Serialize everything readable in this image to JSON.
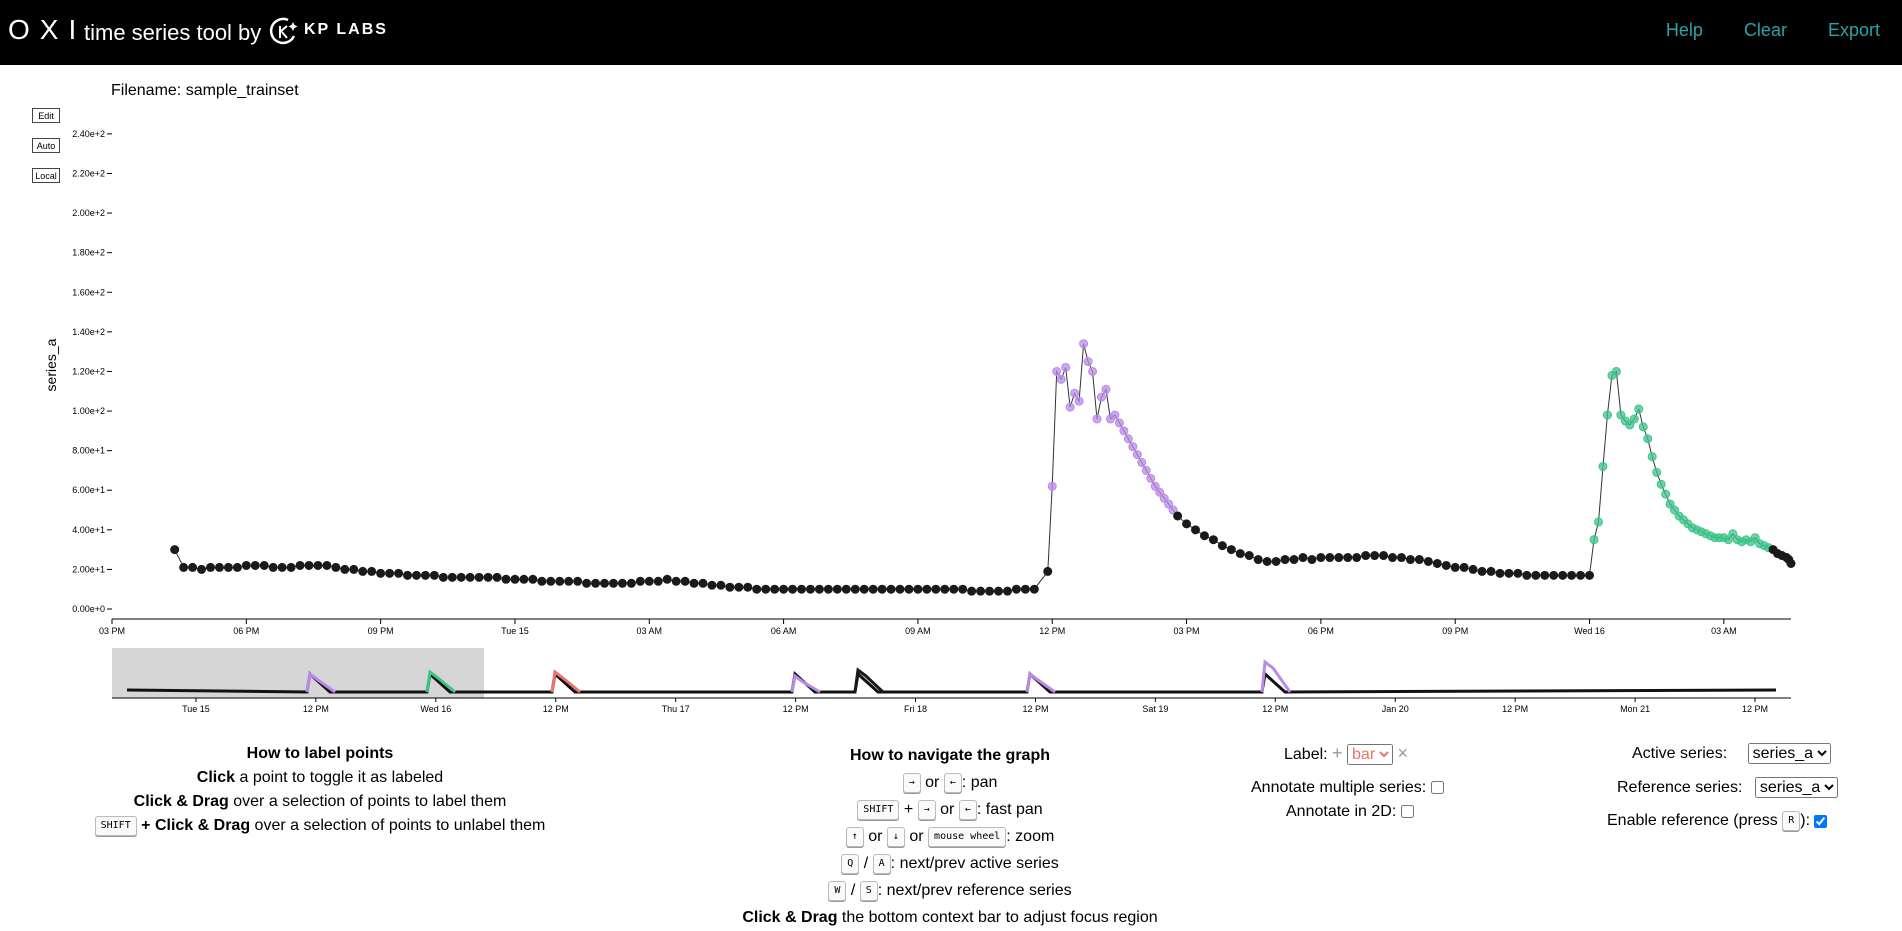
{
  "header": {
    "brand": "OXI",
    "subtitle": "time series tool by",
    "company": "KP LABS",
    "links": [
      "Help",
      "Clear",
      "Export"
    ]
  },
  "filename_label": "Filename: sample_trainset",
  "side_buttons": [
    "Edit",
    "Auto",
    "Local"
  ],
  "chart_data": {
    "type": "scatter",
    "ylabel": "series_a",
    "yticks": [
      "0.00e+0",
      "2.00e+1",
      "4.00e+1",
      "6.00e+1",
      "8.00e+1",
      "1.00e+2",
      "1.20e+2",
      "1.40e+2",
      "1.60e+2",
      "1.80e+2",
      "2.00e+2",
      "2.20e+2",
      "2.40e+2"
    ],
    "ylim": [
      0,
      245
    ],
    "xticks": [
      "03 PM",
      "06 PM",
      "09 PM",
      "Tue 15",
      "03 AM",
      "06 AM",
      "09 AM",
      "12 PM",
      "03 PM",
      "06 PM",
      "09 PM",
      "Wed 16",
      "03 AM"
    ],
    "x_range_hours": [
      0,
      37.5
    ],
    "colors": {
      "unlabeled": "#1a1a1a",
      "purple": "#b98ae8",
      "green": "#3cc48a",
      "red": "#e8756a"
    },
    "points": [
      [
        1.4,
        30
      ],
      [
        1.6,
        21
      ],
      [
        1.8,
        21
      ],
      [
        2.0,
        20
      ],
      [
        2.2,
        21
      ],
      [
        2.4,
        21
      ],
      [
        2.6,
        21
      ],
      [
        2.8,
        21
      ],
      [
        3.0,
        22
      ],
      [
        3.2,
        22
      ],
      [
        3.4,
        22
      ],
      [
        3.6,
        21
      ],
      [
        3.8,
        21
      ],
      [
        4.0,
        21
      ],
      [
        4.2,
        22
      ],
      [
        4.4,
        22
      ],
      [
        4.6,
        22
      ],
      [
        4.8,
        22
      ],
      [
        5.0,
        21
      ],
      [
        5.2,
        20
      ],
      [
        5.4,
        20
      ],
      [
        5.6,
        19
      ],
      [
        5.8,
        19
      ],
      [
        6.0,
        18
      ],
      [
        6.2,
        18
      ],
      [
        6.4,
        18
      ],
      [
        6.6,
        17
      ],
      [
        6.8,
        17
      ],
      [
        7.0,
        17
      ],
      [
        7.2,
        17
      ],
      [
        7.4,
        16
      ],
      [
        7.6,
        16
      ],
      [
        7.8,
        16
      ],
      [
        8.0,
        16
      ],
      [
        8.2,
        16
      ],
      [
        8.4,
        16
      ],
      [
        8.6,
        16
      ],
      [
        8.8,
        15
      ],
      [
        9.0,
        15
      ],
      [
        9.2,
        15
      ],
      [
        9.4,
        15
      ],
      [
        9.6,
        14
      ],
      [
        9.8,
        14
      ],
      [
        10.0,
        14
      ],
      [
        10.2,
        14
      ],
      [
        10.4,
        14
      ],
      [
        10.6,
        13
      ],
      [
        10.8,
        13
      ],
      [
        11.0,
        13
      ],
      [
        11.2,
        13
      ],
      [
        11.4,
        13
      ],
      [
        11.6,
        13
      ],
      [
        11.8,
        14
      ],
      [
        12.0,
        14
      ],
      [
        12.2,
        14
      ],
      [
        12.4,
        15
      ],
      [
        12.6,
        14
      ],
      [
        12.8,
        14
      ],
      [
        13.0,
        13
      ],
      [
        13.2,
        13
      ],
      [
        13.4,
        12
      ],
      [
        13.6,
        12
      ],
      [
        13.8,
        11
      ],
      [
        14.0,
        11
      ],
      [
        14.2,
        11
      ],
      [
        14.4,
        10
      ],
      [
        14.6,
        10
      ],
      [
        14.8,
        10
      ],
      [
        15.0,
        10
      ],
      [
        15.2,
        10
      ],
      [
        15.4,
        10
      ],
      [
        15.6,
        10
      ],
      [
        15.8,
        10
      ],
      [
        16.0,
        10
      ],
      [
        16.2,
        10
      ],
      [
        16.4,
        10
      ],
      [
        16.6,
        10
      ],
      [
        16.8,
        10
      ],
      [
        17.0,
        10
      ],
      [
        17.2,
        10
      ],
      [
        17.4,
        10
      ],
      [
        17.6,
        10
      ],
      [
        17.8,
        10
      ],
      [
        18.0,
        10
      ],
      [
        18.2,
        10
      ],
      [
        18.4,
        10
      ],
      [
        18.6,
        10
      ],
      [
        18.8,
        10
      ],
      [
        19.0,
        10
      ],
      [
        19.2,
        9
      ],
      [
        19.4,
        9
      ],
      [
        19.6,
        9
      ],
      [
        19.8,
        9
      ],
      [
        20.0,
        9
      ],
      [
        20.2,
        10
      ],
      [
        20.4,
        10
      ],
      [
        20.6,
        10
      ],
      [
        20.9,
        19
      ],
      [
        21.0,
        62,
        "p"
      ],
      [
        21.1,
        120,
        "p"
      ],
      [
        21.2,
        116,
        "p"
      ],
      [
        21.3,
        122,
        "p"
      ],
      [
        21.4,
        102,
        "p"
      ],
      [
        21.5,
        109,
        "p"
      ],
      [
        21.6,
        105,
        "p"
      ],
      [
        21.7,
        134,
        "p"
      ],
      [
        21.8,
        125,
        "p"
      ],
      [
        21.9,
        120,
        "p"
      ],
      [
        22.0,
        96,
        "p"
      ],
      [
        22.1,
        107,
        "p"
      ],
      [
        22.2,
        111,
        "p"
      ],
      [
        22.3,
        96,
        "p"
      ],
      [
        22.4,
        98,
        "p"
      ],
      [
        22.5,
        94,
        "p"
      ],
      [
        22.6,
        90,
        "p"
      ],
      [
        22.7,
        86,
        "p"
      ],
      [
        22.8,
        82,
        "p"
      ],
      [
        22.9,
        78,
        "p"
      ],
      [
        23.0,
        74,
        "p"
      ],
      [
        23.1,
        70,
        "p"
      ],
      [
        23.2,
        66,
        "p"
      ],
      [
        23.3,
        62,
        "p"
      ],
      [
        23.4,
        59,
        "p"
      ],
      [
        23.5,
        56,
        "p"
      ],
      [
        23.6,
        53,
        "p"
      ],
      [
        23.7,
        50,
        "p"
      ],
      [
        23.8,
        47
      ],
      [
        24.0,
        43
      ],
      [
        24.2,
        40
      ],
      [
        24.4,
        37
      ],
      [
        24.6,
        35
      ],
      [
        24.8,
        32
      ],
      [
        25.0,
        30
      ],
      [
        25.2,
        28
      ],
      [
        25.4,
        27
      ],
      [
        25.6,
        25
      ],
      [
        25.8,
        24
      ],
      [
        26.0,
        24
      ],
      [
        26.2,
        25
      ],
      [
        26.4,
        25
      ],
      [
        26.6,
        26
      ],
      [
        26.8,
        25
      ],
      [
        27.0,
        26
      ],
      [
        27.2,
        26
      ],
      [
        27.4,
        26
      ],
      [
        27.6,
        26
      ],
      [
        27.8,
        26
      ],
      [
        28.0,
        27
      ],
      [
        28.2,
        27
      ],
      [
        28.4,
        27
      ],
      [
        28.6,
        26
      ],
      [
        28.8,
        26
      ],
      [
        29.0,
        25
      ],
      [
        29.2,
        25
      ],
      [
        29.4,
        24
      ],
      [
        29.6,
        23
      ],
      [
        29.8,
        22
      ],
      [
        30.0,
        21
      ],
      [
        30.2,
        21
      ],
      [
        30.4,
        20
      ],
      [
        30.6,
        19
      ],
      [
        30.8,
        19
      ],
      [
        31.0,
        18
      ],
      [
        31.2,
        18
      ],
      [
        31.4,
        18
      ],
      [
        31.6,
        17
      ],
      [
        31.8,
        17
      ],
      [
        32.0,
        17
      ],
      [
        32.2,
        17
      ],
      [
        32.4,
        17
      ],
      [
        32.6,
        17
      ],
      [
        32.8,
        17
      ],
      [
        33.0,
        17
      ],
      [
        33.1,
        35,
        "g"
      ],
      [
        33.2,
        44,
        "g"
      ],
      [
        33.3,
        72,
        "g"
      ],
      [
        33.4,
        98,
        "g"
      ],
      [
        33.5,
        118,
        "g"
      ],
      [
        33.6,
        120,
        "g"
      ],
      [
        33.7,
        98,
        "g"
      ],
      [
        33.8,
        95,
        "g"
      ],
      [
        33.9,
        93,
        "g"
      ],
      [
        34.0,
        96,
        "g"
      ],
      [
        34.1,
        101,
        "g"
      ],
      [
        34.2,
        92,
        "g"
      ],
      [
        34.3,
        86,
        "g"
      ],
      [
        34.4,
        77,
        "g"
      ],
      [
        34.5,
        69,
        "g"
      ],
      [
        34.6,
        63,
        "g"
      ],
      [
        34.7,
        58,
        "g"
      ],
      [
        34.8,
        53,
        "g"
      ],
      [
        34.9,
        50,
        "g"
      ],
      [
        35.0,
        47,
        "g"
      ],
      [
        35.1,
        45,
        "g"
      ],
      [
        35.2,
        43,
        "g"
      ],
      [
        35.3,
        41,
        "g"
      ],
      [
        35.4,
        40,
        "g"
      ],
      [
        35.5,
        39,
        "g"
      ],
      [
        35.6,
        38,
        "g"
      ],
      [
        35.7,
        37,
        "g"
      ],
      [
        35.8,
        36,
        "g"
      ],
      [
        35.9,
        36,
        "g"
      ],
      [
        36.0,
        36,
        "g"
      ],
      [
        36.1,
        35,
        "g"
      ],
      [
        36.2,
        38,
        "g"
      ],
      [
        36.3,
        35,
        "g"
      ],
      [
        36.4,
        34,
        "g"
      ],
      [
        36.5,
        35,
        "g"
      ],
      [
        36.6,
        34,
        "g"
      ],
      [
        36.7,
        36,
        "g"
      ],
      [
        36.8,
        33,
        "g"
      ],
      [
        36.9,
        32,
        "g"
      ],
      [
        37.0,
        31,
        "g"
      ],
      [
        37.1,
        30
      ],
      [
        37.2,
        28
      ],
      [
        37.3,
        27
      ],
      [
        37.4,
        26
      ],
      [
        37.45,
        25
      ],
      [
        37.5,
        23
      ]
    ],
    "context_xticks": [
      "Tue 15",
      "12 PM",
      "Wed 16",
      "12 PM",
      "Thu 17",
      "12 PM",
      "Fri 18",
      "12 PM",
      "Sat 19",
      "12 PM",
      "Jan 20",
      "12 PM",
      "Mon 21",
      "12 PM"
    ]
  },
  "help_label": {
    "title": "How to label points",
    "line1_b": "Click",
    "line1_t": " a point to toggle it as labeled",
    "line2_b": "Click & Drag",
    "line2_t": " over a selection of points to label them",
    "line3_k": "SHIFT",
    "line3_b": " + Click & Drag",
    "line3_t": " over a selection of points to unlabel them"
  },
  "help_nav": {
    "title": "How to navigate the graph",
    "k_right": "→",
    "k_left": "←",
    "k_up": "↑",
    "k_down": "↓",
    "k_shift": "SHIFT",
    "k_wheel": "mouse wheel",
    "k_q": "Q",
    "k_a": "A",
    "k_w": "W",
    "k_s": "S",
    "or": "or",
    "plus": "+",
    "slash": "/",
    "pan": ": pan",
    "fast_pan": ": fast pan",
    "zoom": ": zoom",
    "next_active": ": next/prev active series",
    "next_ref": ": next/prev reference series",
    "drag_b": "Click & Drag",
    "drag_t": " the bottom context bar to adjust focus region"
  },
  "label_ctl": {
    "label": "Label:",
    "plus": "+",
    "selected": "bar",
    "remove": "×",
    "multi": "Annotate multiple series:",
    "twod": "Annotate in 2D:"
  },
  "series_ctl": {
    "active_label": "Active series:",
    "active_value": "series_a",
    "ref_label": "Reference series:",
    "ref_value": "series_a",
    "enable_label": "Enable reference (press",
    "enable_key": "R",
    "enable_end": "):"
  }
}
